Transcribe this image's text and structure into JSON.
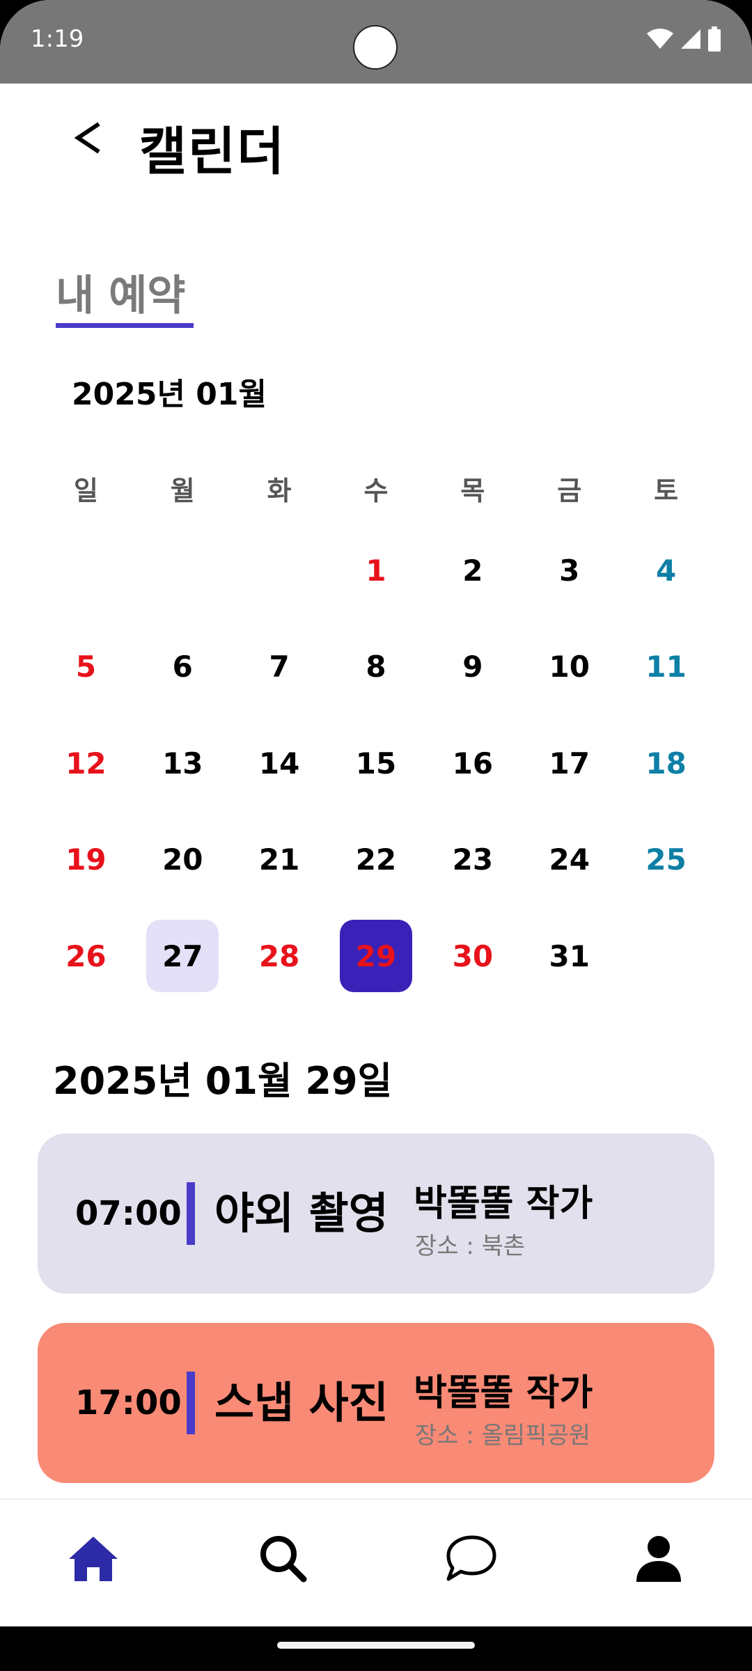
{
  "status_bar": {
    "time": "1:19",
    "icons": [
      "wifi-icon",
      "signal-icon",
      "battery-icon"
    ]
  },
  "header": {
    "back_label": "<",
    "title": "캘린더"
  },
  "section_tab": {
    "label": "내 예약",
    "accent_color": "#4a3cc8"
  },
  "calendar": {
    "month_label": "2025년 01월",
    "weekdays": [
      "일",
      "월",
      "화",
      "수",
      "목",
      "금",
      "토"
    ],
    "weeks": [
      [
        "",
        "",
        "",
        "1",
        "2",
        "3",
        "4"
      ],
      [
        "5",
        "6",
        "7",
        "8",
        "9",
        "10",
        "11"
      ],
      [
        "12",
        "13",
        "14",
        "15",
        "16",
        "17",
        "18"
      ],
      [
        "19",
        "20",
        "21",
        "22",
        "23",
        "24",
        "25"
      ],
      [
        "26",
        "27",
        "28",
        "29",
        "30",
        "31",
        ""
      ]
    ],
    "holidays": [
      "1",
      "28",
      "29",
      "30"
    ],
    "booked_dates": [
      "27"
    ],
    "selected_date": "29",
    "colors": {
      "sunday_holiday": "#e8121b",
      "saturday": "#0e7fa6",
      "selected_bg": "#3a22b8",
      "booked_bg": "#e4e0f7"
    }
  },
  "schedule": {
    "selected_date_label": "2025년 01월 29일",
    "items": [
      {
        "time": "07:00",
        "title": "야외 촬영",
        "artist": "박똘똘 작가",
        "location": "장소 : 북촌",
        "bg_color": "#e2e0ec"
      },
      {
        "time": "17:00",
        "title": "스냅 사진",
        "artist": "박똘똘 작가",
        "location": "장소 : 올림픽공원",
        "bg_color": "#f98a76"
      }
    ]
  },
  "bottom_nav": {
    "items": [
      "home-icon",
      "search-icon",
      "chat-icon",
      "profile-icon"
    ],
    "active": "home-icon",
    "active_color": "#2d2aa8"
  }
}
